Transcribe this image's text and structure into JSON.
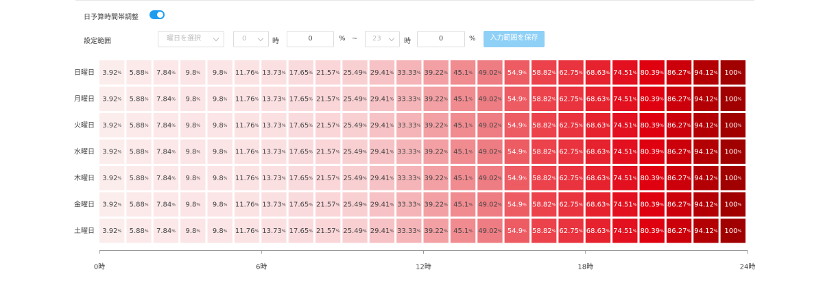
{
  "controls": {
    "toggle_label": "日予算時間帯調整",
    "toggle_on": true,
    "range_label": "設定範囲",
    "day_select": "曜日を選択",
    "start_hour": "0",
    "hour_unit": "時",
    "start_percent": "0",
    "percent_unit": "%",
    "separator": "~",
    "end_hour": "23",
    "end_percent": "0",
    "save_button": "入力範囲を保存"
  },
  "heatmap": {
    "unit": "%",
    "xlim": [
      0,
      24
    ],
    "xticks": [
      {
        "value": 0,
        "label": "0時"
      },
      {
        "value": 6,
        "label": "6時"
      },
      {
        "value": 12,
        "label": "12時"
      },
      {
        "value": 18,
        "label": "18時"
      },
      {
        "value": 24,
        "label": "24時"
      }
    ],
    "rows": [
      {
        "day": "日曜日",
        "values": [
          3.92,
          5.88,
          7.84,
          9.8,
          9.8,
          11.76,
          13.73,
          17.65,
          21.57,
          25.49,
          29.41,
          33.33,
          39.22,
          45.1,
          49.02,
          54.9,
          58.82,
          62.75,
          68.63,
          74.51,
          80.39,
          86.27,
          94.12,
          100
        ]
      },
      {
        "day": "月曜日",
        "values": [
          3.92,
          5.88,
          7.84,
          9.8,
          9.8,
          11.76,
          13.73,
          17.65,
          21.57,
          25.49,
          29.41,
          33.33,
          39.22,
          45.1,
          49.02,
          54.9,
          58.82,
          62.75,
          68.63,
          74.51,
          80.39,
          86.27,
          94.12,
          100
        ]
      },
      {
        "day": "火曜日",
        "values": [
          3.92,
          5.88,
          7.84,
          9.8,
          9.8,
          11.76,
          13.73,
          17.65,
          21.57,
          25.49,
          29.41,
          33.33,
          39.22,
          45.1,
          49.02,
          54.9,
          58.82,
          62.75,
          68.63,
          74.51,
          80.39,
          86.27,
          94.12,
          100
        ]
      },
      {
        "day": "水曜日",
        "values": [
          3.92,
          5.88,
          7.84,
          9.8,
          9.8,
          11.76,
          13.73,
          17.65,
          21.57,
          25.49,
          29.41,
          33.33,
          39.22,
          45.1,
          49.02,
          54.9,
          58.82,
          62.75,
          68.63,
          74.51,
          80.39,
          86.27,
          94.12,
          100
        ]
      },
      {
        "day": "木曜日",
        "values": [
          3.92,
          5.88,
          7.84,
          9.8,
          9.8,
          11.76,
          13.73,
          17.65,
          21.57,
          25.49,
          29.41,
          33.33,
          39.22,
          45.1,
          49.02,
          54.9,
          58.82,
          62.75,
          68.63,
          74.51,
          80.39,
          86.27,
          94.12,
          100
        ]
      },
      {
        "day": "金曜日",
        "values": [
          3.92,
          5.88,
          7.84,
          9.8,
          9.8,
          11.76,
          13.73,
          17.65,
          21.57,
          25.49,
          29.41,
          33.33,
          39.22,
          45.1,
          49.02,
          54.9,
          58.82,
          62.75,
          68.63,
          74.51,
          80.39,
          86.27,
          94.12,
          100
        ]
      },
      {
        "day": "土曜日",
        "values": [
          3.92,
          5.88,
          7.84,
          9.8,
          9.8,
          11.76,
          13.73,
          17.65,
          21.57,
          25.49,
          29.41,
          33.33,
          39.22,
          45.1,
          49.02,
          54.9,
          58.82,
          62.75,
          68.63,
          74.51,
          80.39,
          86.27,
          94.12,
          100
        ]
      }
    ]
  }
}
